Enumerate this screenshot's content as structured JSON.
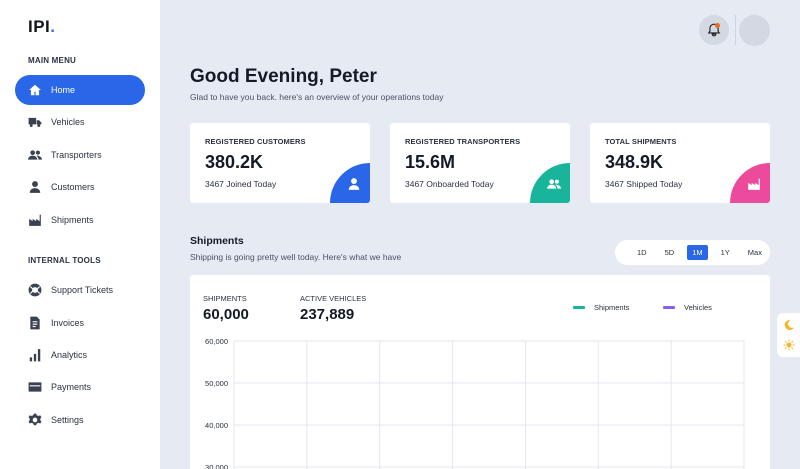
{
  "app": {
    "logo_text": "IPI",
    "logo_dot": "."
  },
  "sidebar": {
    "main_menu_title": "MAIN MENU",
    "main_items": [
      {
        "label": "Home",
        "icon": "home-icon",
        "active": true
      },
      {
        "label": "Vehicles",
        "icon": "truck-icon"
      },
      {
        "label": "Transporters",
        "icon": "users-icon"
      },
      {
        "label": "Customers",
        "icon": "user-icon"
      },
      {
        "label": "Shipments",
        "icon": "factory-icon"
      }
    ],
    "tools_title": "INTERNAL TOOLS",
    "tool_items": [
      {
        "label": "Support Tickets",
        "icon": "lifebuoy-icon"
      },
      {
        "label": "Invoices",
        "icon": "invoice-icon"
      },
      {
        "label": "Analytics",
        "icon": "bar-chart-icon"
      },
      {
        "label": "Payments",
        "icon": "credit-card-icon"
      },
      {
        "label": "Settings",
        "icon": "gear-icon"
      }
    ]
  },
  "header": {
    "greeting": "Good Evening, Peter",
    "subtitle": "Glad to have you back. here's an overview of your operations today"
  },
  "stats": [
    {
      "label": "REGISTERED CUSTOMERS",
      "value": "380.2K",
      "note": "3467 Joined Today",
      "color": "#2a66e8",
      "icon": "user-icon"
    },
    {
      "label": "REGISTERED TRANSPORTERS",
      "value": "15.6M",
      "note": "3467 Onboarded Today",
      "color": "#19b59a",
      "icon": "users-icon"
    },
    {
      "label": "TOTAL SHIPMENTS",
      "value": "348.9K",
      "note": "3467 Shipped Today",
      "color": "#ec4a9a",
      "icon": "factory-icon"
    }
  ],
  "shipments": {
    "title": "Shipments",
    "subtitle": "Shipping is going pretty well today. Here's what we have",
    "ranges": [
      "1D",
      "5D",
      "1M",
      "1Y",
      "Max"
    ],
    "active_range": "1M",
    "metrics": [
      {
        "label": "SHIPMENTS",
        "value": "60,000"
      },
      {
        "label": "ACTIVE VEHICLES",
        "value": "237,889"
      }
    ],
    "legend": [
      {
        "label": "Shipments",
        "color": "#19b59a"
      },
      {
        "label": "Vehicles",
        "color": "#8a5cf0"
      }
    ]
  },
  "chart_data": {
    "type": "line",
    "y_ticks": [
      "60,000",
      "50,000",
      "40,000",
      "30,000"
    ],
    "series": [
      {
        "name": "Shipments",
        "values": []
      },
      {
        "name": "Vehicles",
        "values": []
      }
    ],
    "grid": true
  },
  "colors": {
    "accent": "#2a66e8",
    "background": "#e6eaf2",
    "notification": "#f06a1c"
  }
}
